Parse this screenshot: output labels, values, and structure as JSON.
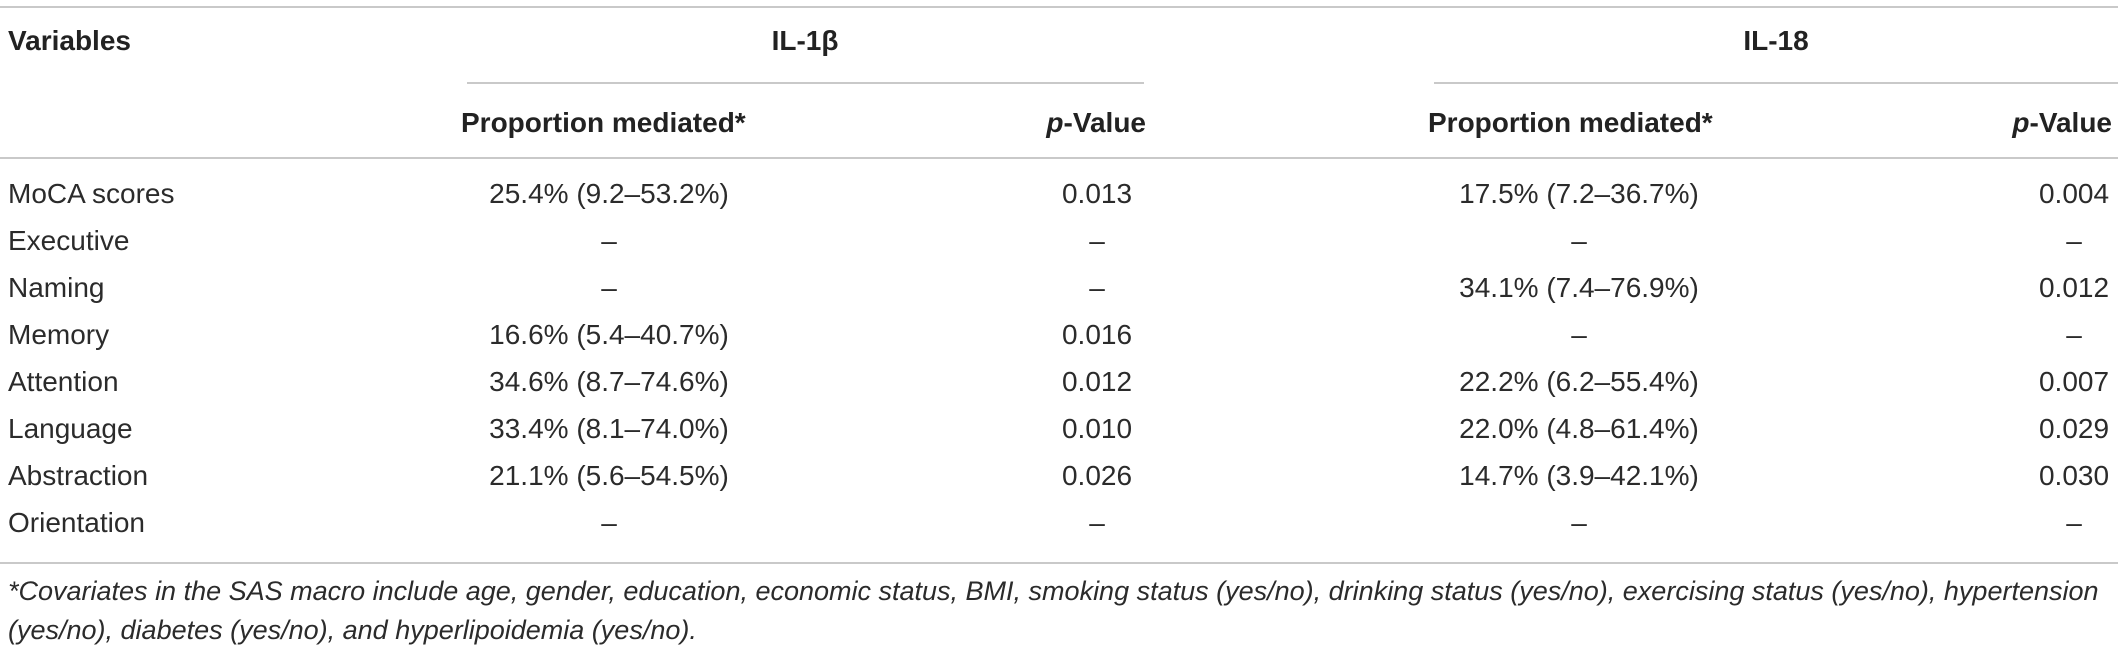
{
  "table": {
    "header": {
      "variables": "Variables",
      "group1": "IL-1β",
      "group2": "IL-18",
      "prop_label": "Proportion mediated*",
      "p_italic": "p",
      "p_rest": "-Value"
    },
    "rows": [
      {
        "variable": "MoCA scores",
        "il1b_prop": "25.4% (9.2–53.2%)",
        "il1b_p": "0.013",
        "il18_prop": "17.5% (7.2–36.7%)",
        "il18_p": "0.004"
      },
      {
        "variable": "Executive",
        "il1b_prop": "–",
        "il1b_p": "–",
        "il18_prop": "–",
        "il18_p": "–"
      },
      {
        "variable": "Naming",
        "il1b_prop": "–",
        "il1b_p": "–",
        "il18_prop": "34.1% (7.4–76.9%)",
        "il18_p": "0.012"
      },
      {
        "variable": "Memory",
        "il1b_prop": "16.6% (5.4–40.7%)",
        "il1b_p": "0.016",
        "il18_prop": "–",
        "il18_p": "–"
      },
      {
        "variable": "Attention",
        "il1b_prop": "34.6% (8.7–74.6%)",
        "il1b_p": "0.012",
        "il18_prop": "22.2% (6.2–55.4%)",
        "il18_p": "0.007"
      },
      {
        "variable": "Language",
        "il1b_prop": "33.4% (8.1–74.0%)",
        "il1b_p": "0.010",
        "il18_prop": "22.0% (4.8–61.4%)",
        "il18_p": "0.029"
      },
      {
        "variable": "Abstraction",
        "il1b_prop": "21.1% (5.6–54.5%)",
        "il1b_p": "0.026",
        "il18_prop": "14.7% (3.9–42.1%)",
        "il18_p": "0.030"
      },
      {
        "variable": "Orientation",
        "il1b_prop": "–",
        "il1b_p": "–",
        "il18_prop": "–",
        "il18_p": "–"
      }
    ],
    "footnote": "*Covariates in the SAS macro include age, gender, education, economic status, BMI, smoking status (yes/no), drinking status (yes/no), exercising status (yes/no), hypertension (yes/no), diabetes (yes/no), and hyperlipoidemia (yes/no)."
  }
}
